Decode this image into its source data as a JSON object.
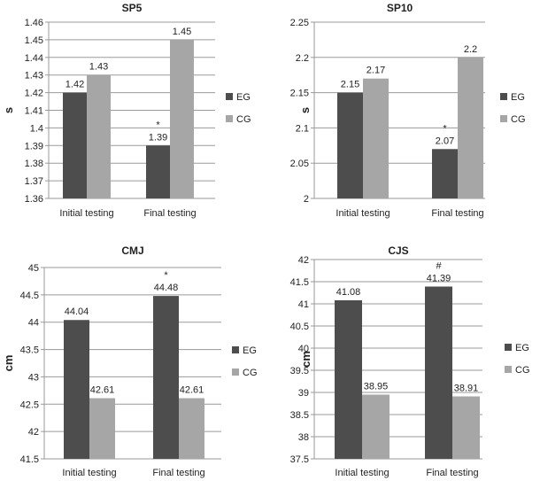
{
  "chart_data": [
    {
      "type": "bar",
      "title": "SP5",
      "ylabel": "s",
      "xlabel": "",
      "categories": [
        "Initial testing",
        "Final testing"
      ],
      "ylim": [
        1.36,
        1.46
      ],
      "ytick_step": 0.01,
      "yticks": [
        "1.36",
        "1.37",
        "1.38",
        "1.39",
        "1.4",
        "1.41",
        "1.42",
        "1.43",
        "1.44",
        "1.45",
        "1.46"
      ],
      "grid": true,
      "legend": "right",
      "series": [
        {
          "name": "EG",
          "values": [
            1.42,
            1.39
          ],
          "labels": [
            "1.42",
            "1.39"
          ],
          "color": "#4d4d4d"
        },
        {
          "name": "CG",
          "values": [
            1.43,
            1.45
          ],
          "labels": [
            "1.43",
            "1.45"
          ],
          "color": "#a6a6a6"
        }
      ],
      "annotations": [
        {
          "text": "*",
          "category": "Final testing",
          "series": "EG"
        }
      ]
    },
    {
      "type": "bar",
      "title": "SP10",
      "ylabel": "s",
      "xlabel": "",
      "categories": [
        "Initial testing",
        "Final testing"
      ],
      "ylim": [
        2,
        2.25
      ],
      "yticks": [
        "2",
        "2.05",
        "2.1",
        "2.15",
        "2.2",
        "2.25"
      ],
      "grid": true,
      "legend": "right",
      "series": [
        {
          "name": "EG",
          "values": [
            2.15,
            2.07
          ],
          "labels": [
            "2.15",
            "2.07"
          ],
          "color": "#4d4d4d"
        },
        {
          "name": "CG",
          "values": [
            2.17,
            2.2
          ],
          "labels": [
            "2.17",
            "2.2"
          ],
          "color": "#a6a6a6"
        }
      ],
      "annotations": [
        {
          "text": "*",
          "category": "Final testing",
          "series": "EG"
        }
      ]
    },
    {
      "type": "bar",
      "title": "CMJ",
      "ylabel": "cm",
      "xlabel": "",
      "categories": [
        "Initial testing",
        "Final testing"
      ],
      "ylim": [
        41.5,
        45
      ],
      "yticks": [
        "41.5",
        "42",
        "42.5",
        "43",
        "43.5",
        "44",
        "44.5",
        "45"
      ],
      "grid": true,
      "legend": "right",
      "series": [
        {
          "name": "EG",
          "values": [
            44.04,
            44.48
          ],
          "labels": [
            "44.04",
            "44.48"
          ],
          "color": "#4d4d4d"
        },
        {
          "name": "CG",
          "values": [
            42.61,
            42.61
          ],
          "labels": [
            "42.61",
            "42.61"
          ],
          "color": "#a6a6a6"
        }
      ],
      "annotations": [
        {
          "text": "*",
          "category": "Final testing",
          "series": "EG"
        }
      ]
    },
    {
      "type": "bar",
      "title": "CJS",
      "ylabel": "cm",
      "xlabel": "",
      "categories": [
        "Initial testing",
        "Final testing"
      ],
      "ylim": [
        37.5,
        42
      ],
      "yticks": [
        "37.5",
        "38",
        "38.5",
        "39",
        "39.5",
        "40",
        "40.5",
        "41",
        "41.5",
        "42"
      ],
      "grid": true,
      "legend": "right",
      "series": [
        {
          "name": "EG",
          "values": [
            41.08,
            41.39
          ],
          "labels": [
            "41.08",
            "41.39"
          ],
          "color": "#4d4d4d"
        },
        {
          "name": "CG",
          "values": [
            38.95,
            38.91
          ],
          "labels": [
            "38.95",
            "38.91"
          ],
          "color": "#a6a6a6"
        }
      ],
      "annotations": [
        {
          "text": "#",
          "category": "Final testing",
          "series": "EG"
        }
      ]
    }
  ]
}
